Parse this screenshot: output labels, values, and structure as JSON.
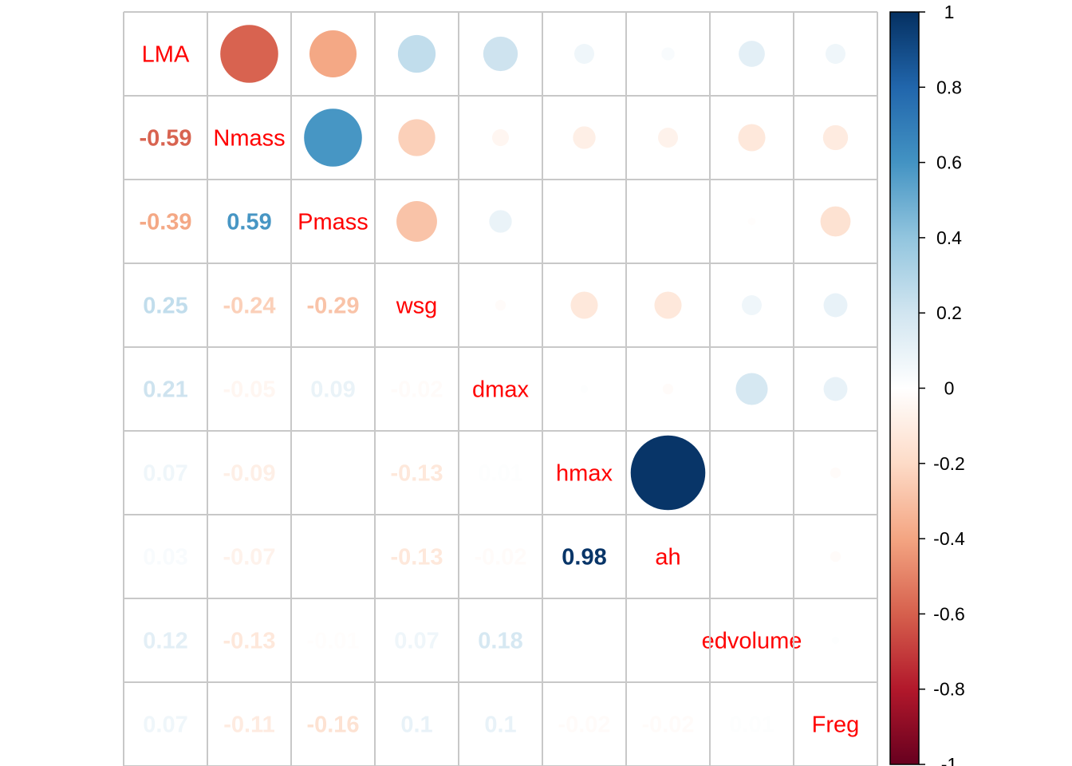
{
  "chart_data": {
    "type": "heatmap",
    "variables": [
      "LMA",
      "Nmass",
      "Pmass",
      "wsg",
      "dmax",
      "hmax",
      "ah",
      "edvolume",
      "Freg"
    ],
    "matrix": [
      [
        1.0,
        -0.59,
        -0.39,
        0.25,
        0.21,
        0.07,
        0.03,
        0.12,
        0.07
      ],
      [
        -0.59,
        1.0,
        0.59,
        -0.24,
        -0.05,
        -0.09,
        -0.07,
        -0.13,
        -0.11
      ],
      [
        -0.39,
        0.59,
        1.0,
        -0.29,
        0.09,
        0.0,
        0.0,
        -0.01,
        -0.16
      ],
      [
        0.25,
        -0.24,
        -0.29,
        1.0,
        -0.02,
        -0.13,
        -0.13,
        0.07,
        0.1
      ],
      [
        0.21,
        -0.05,
        0.09,
        -0.02,
        1.0,
        0.01,
        -0.02,
        0.18,
        0.1
      ],
      [
        0.07,
        -0.09,
        0.0,
        -0.13,
        0.01,
        1.0,
        0.98,
        0.0,
        -0.02
      ],
      [
        0.03,
        -0.07,
        0.0,
        -0.13,
        -0.02,
        0.98,
        1.0,
        0.0,
        -0.02
      ],
      [
        0.12,
        -0.13,
        -0.01,
        0.07,
        0.18,
        0.0,
        0.0,
        1.0,
        0.01
      ],
      [
        0.07,
        -0.11,
        -0.16,
        0.1,
        0.1,
        -0.02,
        -0.02,
        0.01,
        1.0
      ]
    ],
    "lower_labels": [
      [],
      [
        "-0.59"
      ],
      [
        "-0.39",
        "0.59"
      ],
      [
        "0.25",
        "-0.24",
        "-0.29"
      ],
      [
        "0.21",
        "-0.05",
        "0.09",
        "-0.02"
      ],
      [
        "0.07",
        "-0.09",
        "0",
        "-0.13",
        "0.01"
      ],
      [
        "0.03",
        "-0.07",
        "0",
        "-0.13",
        "-0.02",
        "0.98"
      ],
      [
        "0.12",
        "-0.13",
        "-0.01",
        "0.07",
        "0.18",
        "0",
        "0"
      ],
      [
        "0.07",
        "-0.11",
        "-0.16",
        "0.1",
        "0.1",
        "-0.02",
        "-0.02",
        "0.01"
      ]
    ],
    "upper": "circle",
    "lower": "number",
    "diagonal": "variable names",
    "colorbar": {
      "range": [
        -1,
        1
      ],
      "ticks": [
        "1",
        "0.8",
        "0.6",
        "0.4",
        "0.2",
        "0",
        "-0.2",
        "-0.4",
        "-0.6",
        "-0.8",
        "-1"
      ],
      "tick_values": [
        1,
        0.8,
        0.6,
        0.4,
        0.2,
        0,
        -0.2,
        -0.4,
        -0.6,
        -0.8,
        -1
      ],
      "placement": "right"
    },
    "palette": [
      "#67001F",
      "#B2182B",
      "#D6604D",
      "#F4A582",
      "#FDDBC7",
      "#FFFFFF",
      "#D1E5F0",
      "#92C5DE",
      "#4393C3",
      "#2166AC",
      "#053061"
    ],
    "label_color": "#FF0000",
    "grid_color": "#C8C8C8"
  }
}
